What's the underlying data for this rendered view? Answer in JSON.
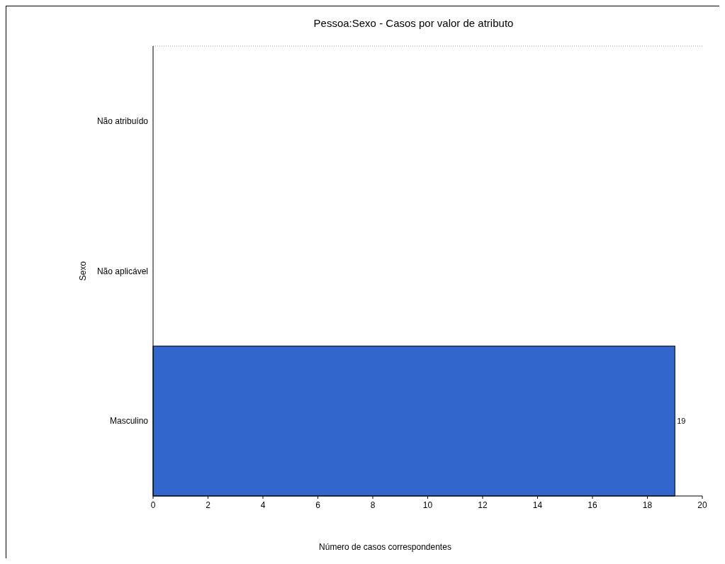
{
  "chart_data": {
    "type": "bar",
    "orientation": "horizontal",
    "title": "Pessoa:Sexo - Casos por valor de atributo",
    "xlabel": "Número de casos correspondentes",
    "ylabel": "Sexo",
    "categories": [
      "Não atribuído",
      "Não aplicável",
      "Masculino"
    ],
    "values": [
      0,
      0,
      19
    ],
    "value_labels": [
      null,
      null,
      "19"
    ],
    "color": "#3366cc",
    "xlim": [
      0,
      20
    ],
    "xticks": [
      0,
      2,
      4,
      6,
      8,
      10,
      12,
      14,
      16,
      18,
      20
    ],
    "grid": false
  }
}
